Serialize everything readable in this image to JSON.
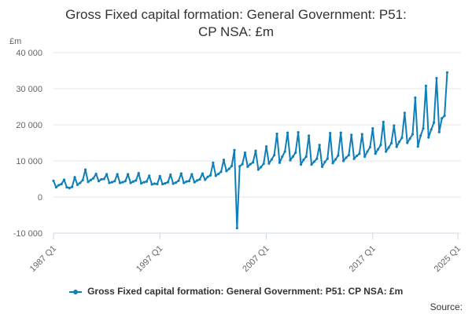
{
  "chart_data": {
    "type": "line",
    "title_lines": [
      "Gross Fixed capital formation: General Government: P51:",
      "CP NSA: £m"
    ],
    "ylabel": "£m",
    "ylim": [
      -10000,
      40000
    ],
    "yticks": [
      -10000,
      0,
      10000,
      20000,
      30000,
      40000
    ],
    "ytick_labels": [
      "-10 000",
      "0",
      "10 000",
      "20 000",
      "30 000",
      "40 000"
    ],
    "xlim": [
      "1987 Q1",
      "2025 Q1"
    ],
    "xticks": [
      "1987 Q1",
      "1997 Q1",
      "2007 Q1",
      "2017 Q1",
      "2025 Q1"
    ],
    "grid": true,
    "legend_position": "bottom",
    "color": "#0f7fb9",
    "start": "1987 Q1",
    "series": [
      {
        "name": "Gross Fixed capital formation: General Government: P51: CP NSA: £m",
        "values": [
          4500,
          2700,
          3300,
          3600,
          4800,
          2700,
          2500,
          2800,
          5500,
          3400,
          3900,
          4700,
          7600,
          4200,
          4700,
          5200,
          6400,
          4400,
          4900,
          5000,
          6300,
          3900,
          4100,
          4400,
          6300,
          3900,
          4100,
          4400,
          6300,
          3900,
          4300,
          4600,
          6600,
          3800,
          4100,
          4300,
          5900,
          3500,
          3700,
          3600,
          5800,
          3600,
          3800,
          4100,
          6200,
          3700,
          4000,
          4500,
          6500,
          3900,
          4300,
          4400,
          6300,
          4100,
          4600,
          4900,
          6500,
          4800,
          5600,
          6000,
          9500,
          5900,
          6400,
          7000,
          10300,
          7200,
          7800,
          8600,
          13000,
          -8600,
          8500,
          9100,
          12300,
          8400,
          9100,
          9600,
          12800,
          7600,
          8300,
          9200,
          14000,
          9300,
          10400,
          11600,
          17500,
          9500,
          11200,
          12600,
          17800,
          10200,
          11200,
          12300,
          17900,
          9000,
          10300,
          11200,
          17000,
          9000,
          9800,
          10600,
          14400,
          8400,
          9700,
          10600,
          17700,
          9400,
          10400,
          11500,
          17800,
          10000,
          10900,
          11600,
          17200,
          10600,
          11400,
          12000,
          17400,
          11200,
          12600,
          13800,
          19000,
          12000,
          13200,
          14400,
          20800,
          12600,
          13700,
          14900,
          19800,
          13900,
          15300,
          16400,
          23300,
          15000,
          16200,
          17400,
          27500,
          14000,
          17000,
          19000,
          30800,
          16500,
          18700,
          20600,
          32900,
          18000,
          21800,
          22500,
          34500
        ]
      }
    ]
  },
  "source_label": "Source:"
}
